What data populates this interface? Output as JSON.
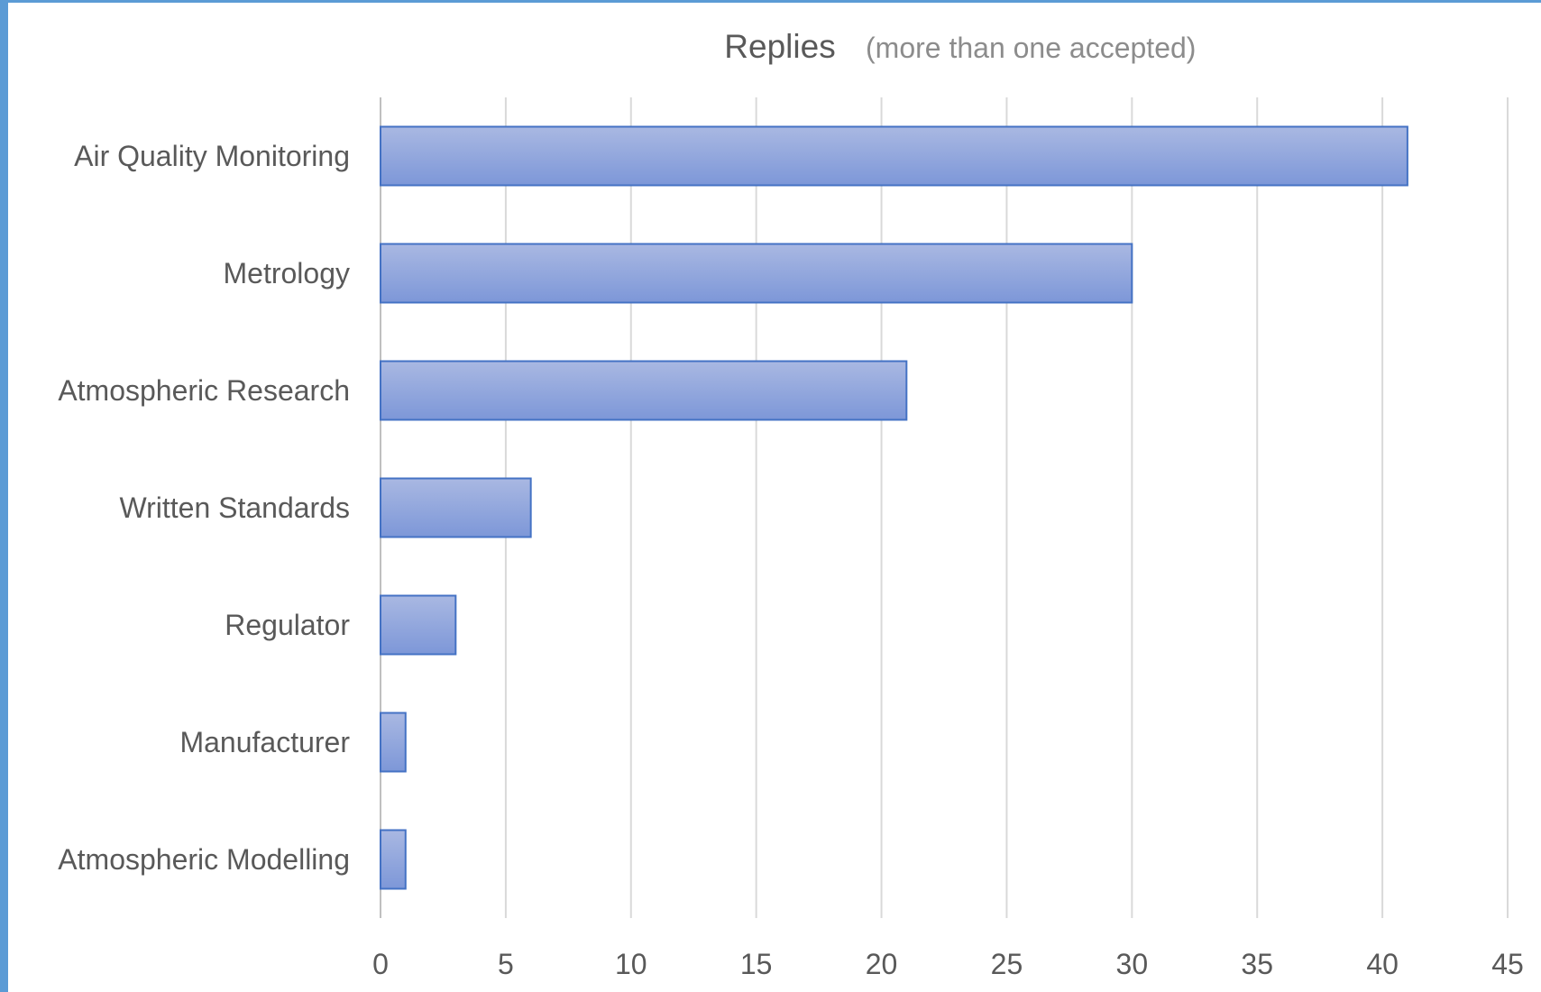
{
  "chart_data": {
    "type": "bar",
    "orientation": "horizontal",
    "title": "Replies",
    "subtitle": "(more than one accepted)",
    "categories": [
      "Air Quality Monitoring",
      "Metrology",
      "Atmospheric Research",
      "Written Standards",
      "Regulator",
      "Manufacturer",
      "Atmospheric Modelling"
    ],
    "values": [
      41,
      30,
      21,
      6,
      3,
      1,
      1
    ],
    "xlim": [
      0,
      45
    ],
    "xticks": [
      "0",
      "5",
      "10",
      "15",
      "20",
      "25",
      "30",
      "35",
      "40",
      "45"
    ],
    "grid": true,
    "legend": "none",
    "colors": {
      "bar_fill_top": "#a9b8e2",
      "bar_fill_bottom": "#7d97d8",
      "bar_stroke": "#4472c4",
      "frame": "#5b9bd5"
    }
  }
}
